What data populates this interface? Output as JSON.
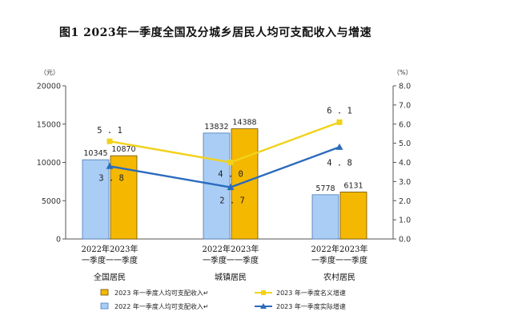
{
  "figure": {
    "title": "图1   2023年一季度全国及分城乡居民人均可支配收入与增速"
  },
  "colors": {
    "bar_2022": "#a9cdf5",
    "bar_2022_stroke": "#4a79b8",
    "bar_2023": "#f5b800",
    "bar_2023_stroke": "#6b5200",
    "line_nominal": "#f2d21b",
    "line_real": "#2b6bbd",
    "axis": "#555555"
  },
  "chart_data": {
    "type": "bar",
    "title": "2023年一季度全国及分城乡居民人均可支配收入与增速",
    "categories": [
      "全国居民",
      "城镇居民",
      "农村居民"
    ],
    "period_labels": {
      "line1": [
        "2022年",
        "2023年"
      ],
      "line2": [
        "一季度",
        "一季度"
      ]
    },
    "left_axis": {
      "unit": "（元）",
      "min": 0,
      "max": 20000,
      "ticks": [
        "0",
        "5000",
        "10000",
        "15000",
        "20000"
      ],
      "tick_values": [
        0,
        5000,
        10000,
        15000,
        20000
      ]
    },
    "right_axis": {
      "unit": "（%）",
      "min": 0,
      "max": 8,
      "ticks": [
        "0.0",
        "1.0",
        "2.0",
        "3.0",
        "4.0",
        "5.0",
        "6.0",
        "7.0",
        "8.0"
      ],
      "tick_values": [
        0,
        1,
        2,
        3,
        4,
        5,
        6,
        7,
        8
      ]
    },
    "series": [
      {
        "name": "2022 年一季度人均可支配收入",
        "kind": "bar",
        "values": [
          10345,
          13832,
          5778
        ],
        "labels": [
          "10345",
          "13832",
          "5778"
        ]
      },
      {
        "name": "2023 年一季度人均可支配收入",
        "kind": "bar",
        "values": [
          10870,
          14388,
          6131
        ],
        "labels": [
          "10870",
          "14388",
          "6131"
        ]
      },
      {
        "name": "2023 年一季度名义增速",
        "kind": "line",
        "axis": "right",
        "values": [
          5.1,
          4.0,
          6.1
        ],
        "labels": [
          "5.1",
          "4.0",
          "6.1"
        ]
      },
      {
        "name": "2023 年一季度实际增速",
        "kind": "line",
        "axis": "right",
        "values": [
          3.8,
          2.7,
          4.8
        ],
        "labels": [
          "3.8",
          "2.7",
          "4.8"
        ]
      }
    ],
    "legend": {
      "placement": "bottom",
      "items": [
        "2023 年一季度人均可支配收入↵",
        "2022 年一季度人均可支配收入↵",
        "2023 年一季度名义增速",
        "2023 年一季度实际增速"
      ]
    }
  }
}
